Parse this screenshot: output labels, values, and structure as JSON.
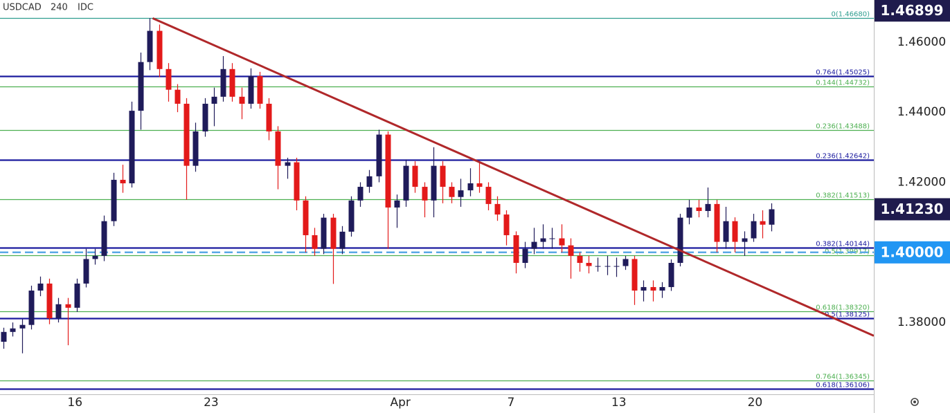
{
  "chart_data": {
    "type": "candlestick",
    "symbol": "USDCAD",
    "interval": "240",
    "source": "IDC",
    "up_color": "#1f1b5a",
    "down_color": "#e31a1a",
    "xlim": [
      -0.4,
      95.2
    ],
    "ylim": [
      1.3595,
      1.472
    ],
    "xticks": [
      {
        "value": 7.8,
        "label": "16"
      },
      {
        "value": 22.7,
        "label": "23"
      },
      {
        "value": 43.4,
        "label": "Apr"
      },
      {
        "value": 55.5,
        "label": "7"
      },
      {
        "value": 67.3,
        "label": "13"
      },
      {
        "value": 82.2,
        "label": "20"
      }
    ],
    "yticks": [
      {
        "value": 1.38,
        "label": "1.38000"
      },
      {
        "value": 1.4,
        "label": "1.40000"
      },
      {
        "value": 1.42,
        "label": "1.42000"
      },
      {
        "value": 1.44,
        "label": "1.44000"
      },
      {
        "value": 1.46,
        "label": "1.46000"
      }
    ],
    "open": [
      1.3745,
      1.3773,
      1.3783,
      1.3793,
      1.3891,
      1.3911,
      1.3812,
      1.3852,
      1.3842,
      1.3911,
      1.3981,
      1.399,
      1.4089,
      1.4207,
      1.4197,
      1.4404,
      1.4543,
      1.4632,
      1.4523,
      1.4464,
      1.4424,
      1.4247,
      1.4345,
      1.4424,
      1.4444,
      1.4523,
      1.4444,
      1.4424,
      1.4503,
      1.4424,
      1.4345,
      1.4247,
      1.4257,
      1.4148,
      1.4049,
      1.401,
      1.4099,
      1.401,
      1.4059,
      1.4148,
      1.4187,
      1.4217,
      1.4336,
      1.4128,
      1.4148,
      1.4247,
      1.4187,
      1.4148,
      1.4247,
      1.4187,
      1.4158,
      1.4177,
      1.4197,
      1.4187,
      1.4138,
      1.4108,
      1.4049,
      1.397,
      1.401,
      1.403,
      1.404,
      1.404,
      1.402,
      1.399,
      1.397,
      1.3961,
      1.3961,
      1.3961,
      1.3961,
      1.3981,
      1.3891,
      1.3901,
      1.3891,
      1.3901,
      1.397,
      1.4099,
      1.4128,
      1.4118,
      1.4138,
      1.403,
      1.4089,
      1.403,
      1.404,
      1.4089,
      1.4079
    ],
    "high": [
      1.3785,
      1.38,
      1.381,
      1.3905,
      1.3931,
      1.3925,
      1.387,
      1.387,
      1.3925,
      1.401,
      1.401,
      1.4105,
      1.4227,
      1.425,
      1.443,
      1.457,
      1.4668,
      1.465,
      1.454,
      1.448,
      1.444,
      1.437,
      1.444,
      1.447,
      1.456,
      1.454,
      1.447,
      1.4525,
      1.4515,
      1.444,
      1.436,
      1.427,
      1.427,
      1.416,
      1.407,
      1.411,
      1.411,
      1.4075,
      1.416,
      1.42,
      1.4235,
      1.435,
      1.4345,
      1.4165,
      1.4265,
      1.426,
      1.42,
      1.43,
      1.426,
      1.42,
      1.421,
      1.424,
      1.426,
      1.42,
      1.416,
      1.412,
      1.406,
      1.403,
      1.407,
      1.408,
      1.407,
      1.408,
      1.404,
      1.4,
      1.399,
      1.3985,
      1.399,
      1.3985,
      1.399,
      1.399,
      1.392,
      1.392,
      1.3915,
      1.398,
      1.411,
      1.415,
      1.415,
      1.4185,
      1.415,
      1.413,
      1.41,
      1.406,
      1.411,
      1.412,
      1.414
    ],
    "low": [
      1.3725,
      1.376,
      1.3712,
      1.378,
      1.3875,
      1.3795,
      1.38,
      1.3735,
      1.383,
      1.39,
      1.3965,
      1.3975,
      1.4075,
      1.417,
      1.4185,
      1.435,
      1.452,
      1.45,
      1.443,
      1.44,
      1.415,
      1.423,
      1.433,
      1.436,
      1.443,
      1.443,
      1.438,
      1.441,
      1.441,
      1.432,
      1.418,
      1.421,
      1.412,
      1.4,
      1.399,
      1.3995,
      1.391,
      1.3995,
      1.4045,
      1.413,
      1.417,
      1.42,
      1.401,
      1.407,
      1.413,
      1.417,
      1.41,
      1.41,
      1.414,
      1.414,
      1.413,
      1.416,
      1.417,
      1.412,
      1.409,
      1.402,
      1.394,
      1.3955,
      1.3995,
      1.401,
      1.401,
      1.4,
      1.3925,
      1.3945,
      1.394,
      1.3945,
      1.3935,
      1.393,
      1.395,
      1.385,
      1.386,
      1.386,
      1.387,
      1.389,
      1.396,
      1.408,
      1.41,
      1.41,
      1.4,
      1.401,
      1.4,
      1.399,
      1.403,
      1.404,
      1.406
    ],
    "close": [
      1.3773,
      1.3783,
      1.3793,
      1.3891,
      1.3911,
      1.3812,
      1.3852,
      1.3842,
      1.3911,
      1.3981,
      1.399,
      1.4089,
      1.4207,
      1.4197,
      1.4404,
      1.4543,
      1.4632,
      1.4523,
      1.4464,
      1.4424,
      1.4247,
      1.4345,
      1.4424,
      1.4444,
      1.4523,
      1.4444,
      1.4424,
      1.4503,
      1.4424,
      1.4345,
      1.4247,
      1.4257,
      1.4148,
      1.4049,
      1.401,
      1.4099,
      1.401,
      1.4059,
      1.4148,
      1.4187,
      1.4217,
      1.4336,
      1.4128,
      1.4148,
      1.4247,
      1.4187,
      1.4148,
      1.4247,
      1.4187,
      1.4158,
      1.4177,
      1.4197,
      1.4187,
      1.4138,
      1.4108,
      1.4049,
      1.397,
      1.401,
      1.403,
      1.404,
      1.404,
      1.402,
      1.399,
      1.397,
      1.3961,
      1.3961,
      1.3961,
      1.3961,
      1.3981,
      1.3891,
      1.3901,
      1.3891,
      1.3901,
      1.397,
      1.4099,
      1.4128,
      1.4118,
      1.4138,
      1.403,
      1.4089,
      1.403,
      1.404,
      1.4089,
      1.4079,
      1.4123
    ],
    "fib_levels": [
      {
        "label": "0(1.46680)",
        "value": 1.4668,
        "color": "#2e9d8f"
      },
      {
        "label": "0.764(1.45025)",
        "value": 1.45025,
        "color": "#1a1a9e"
      },
      {
        "label": "0.144(1.44732)",
        "value": 1.44732,
        "color": "#4caf50"
      },
      {
        "label": "0.236(1.43488)",
        "value": 1.43488,
        "color": "#4caf50"
      },
      {
        "label": "0.236(1.42642)",
        "value": 1.42642,
        "color": "#1a1a9e"
      },
      {
        "label": "0.382(1.41513)",
        "value": 1.41513,
        "color": "#4caf50"
      },
      {
        "label": "0.382(1.40144)",
        "value": 1.40144,
        "color": "#1a1a9e"
      },
      {
        "label": "0.5(1.39917)",
        "value": 1.39917,
        "color": "#4caf50"
      },
      {
        "label": "0.618(1.38320)",
        "value": 1.3832,
        "color": "#4caf50"
      },
      {
        "label": "0.5(1.38125)",
        "value": 1.38125,
        "color": "#1a1a9e"
      },
      {
        "label": "0.764(1.36345)",
        "value": 1.36345,
        "color": "#4caf50"
      },
      {
        "label": "0.618(1.36106)",
        "value": 1.36106,
        "color": "#1a1a9e"
      }
    ],
    "hline": {
      "value": 1.4,
      "color": "#5aa9e6"
    },
    "trendline": {
      "x": [
        16.3,
        95.2
      ],
      "y": [
        1.4668,
        1.3762
      ],
      "color": "#b0282a"
    },
    "price_labels": [
      {
        "value": 1.46899,
        "label": "1.46899",
        "color": "#1f1b4d"
      },
      {
        "value": 1.4123,
        "label": "1.41230",
        "color": "#1f1b4d"
      },
      {
        "value": 1.4,
        "label": "1.40000",
        "color": "#2196f3"
      }
    ]
  }
}
